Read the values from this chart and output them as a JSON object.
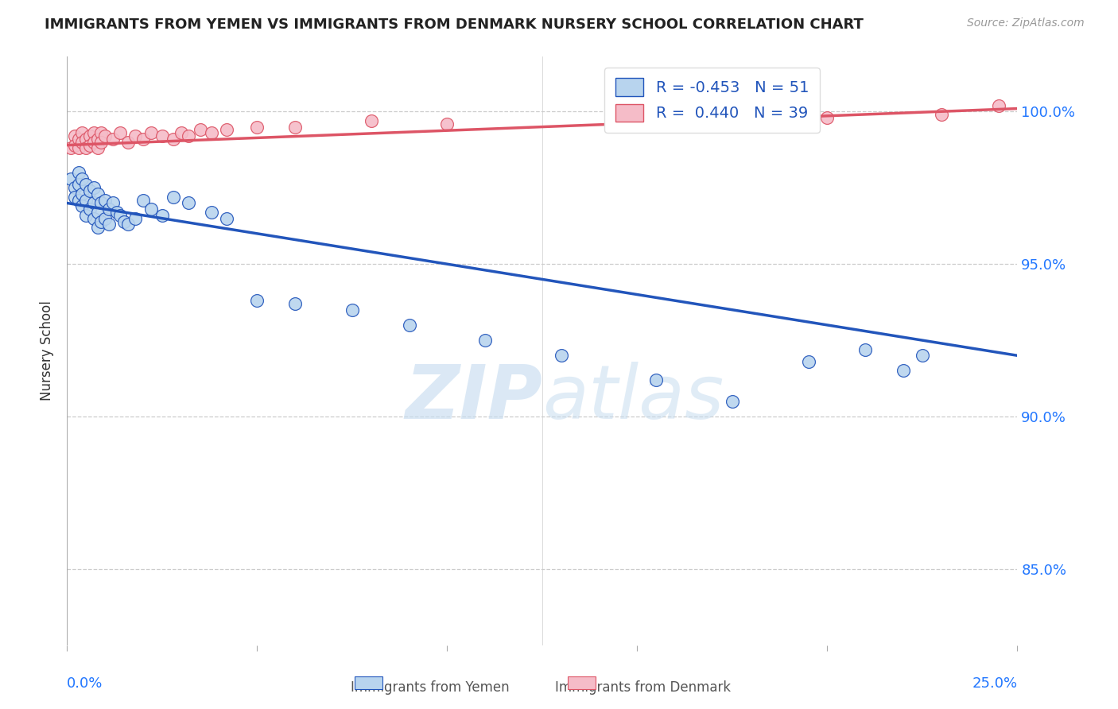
{
  "title": "IMMIGRANTS FROM YEMEN VS IMMIGRANTS FROM DENMARK NURSERY SCHOOL CORRELATION CHART",
  "source": "Source: ZipAtlas.com",
  "ylabel": "Nursery School",
  "yticks": [
    0.85,
    0.9,
    0.95,
    1.0
  ],
  "ytick_labels": [
    "85.0%",
    "90.0%",
    "95.0%",
    "100.0%"
  ],
  "xlim": [
    0.0,
    0.25
  ],
  "ylim": [
    0.825,
    1.018
  ],
  "watermark": "ZIPatlas",
  "legend_label1": "Immigrants from Yemen",
  "legend_label2": "Immigrants from Denmark",
  "color_yemen_fill": "#b8d4ee",
  "color_denmark_fill": "#f5bcc8",
  "color_line_yemen": "#2255bb",
  "color_line_denmark": "#dd5566",
  "yemen_x": [
    0.001,
    0.002,
    0.002,
    0.003,
    0.003,
    0.003,
    0.004,
    0.004,
    0.004,
    0.005,
    0.005,
    0.005,
    0.006,
    0.006,
    0.007,
    0.007,
    0.007,
    0.008,
    0.008,
    0.008,
    0.009,
    0.009,
    0.01,
    0.01,
    0.011,
    0.011,
    0.012,
    0.013,
    0.014,
    0.015,
    0.016,
    0.018,
    0.02,
    0.022,
    0.025,
    0.028,
    0.032,
    0.038,
    0.042,
    0.05,
    0.06,
    0.075,
    0.09,
    0.11,
    0.13,
    0.155,
    0.175,
    0.195,
    0.21,
    0.22,
    0.225
  ],
  "yemen_y": [
    0.978,
    0.975,
    0.972,
    0.98,
    0.976,
    0.971,
    0.978,
    0.973,
    0.969,
    0.976,
    0.971,
    0.966,
    0.974,
    0.968,
    0.975,
    0.97,
    0.965,
    0.973,
    0.967,
    0.962,
    0.97,
    0.964,
    0.971,
    0.965,
    0.968,
    0.963,
    0.97,
    0.967,
    0.966,
    0.964,
    0.963,
    0.965,
    0.971,
    0.968,
    0.966,
    0.972,
    0.97,
    0.967,
    0.965,
    0.938,
    0.937,
    0.935,
    0.93,
    0.925,
    0.92,
    0.912,
    0.905,
    0.918,
    0.922,
    0.915,
    0.92
  ],
  "denmark_x": [
    0.001,
    0.002,
    0.002,
    0.003,
    0.003,
    0.004,
    0.004,
    0.005,
    0.005,
    0.006,
    0.006,
    0.007,
    0.007,
    0.008,
    0.008,
    0.009,
    0.009,
    0.01,
    0.012,
    0.014,
    0.016,
    0.018,
    0.02,
    0.022,
    0.025,
    0.028,
    0.03,
    0.032,
    0.035,
    0.038,
    0.042,
    0.05,
    0.06,
    0.08,
    0.1,
    0.15,
    0.2,
    0.23,
    0.245
  ],
  "denmark_y": [
    0.988,
    0.992,
    0.989,
    0.991,
    0.988,
    0.993,
    0.99,
    0.991,
    0.988,
    0.992,
    0.989,
    0.993,
    0.99,
    0.991,
    0.988,
    0.993,
    0.99,
    0.992,
    0.991,
    0.993,
    0.99,
    0.992,
    0.991,
    0.993,
    0.992,
    0.991,
    0.993,
    0.992,
    0.994,
    0.993,
    0.994,
    0.995,
    0.995,
    0.997,
    0.996,
    0.997,
    0.998,
    0.999,
    1.002
  ],
  "line_yemen_x0": 0.0,
  "line_yemen_x1": 0.25,
  "line_yemen_y0": 0.97,
  "line_yemen_y1": 0.92,
  "line_denmark_x0": 0.0,
  "line_denmark_x1": 0.25,
  "line_denmark_y0": 0.989,
  "line_denmark_y1": 1.001
}
